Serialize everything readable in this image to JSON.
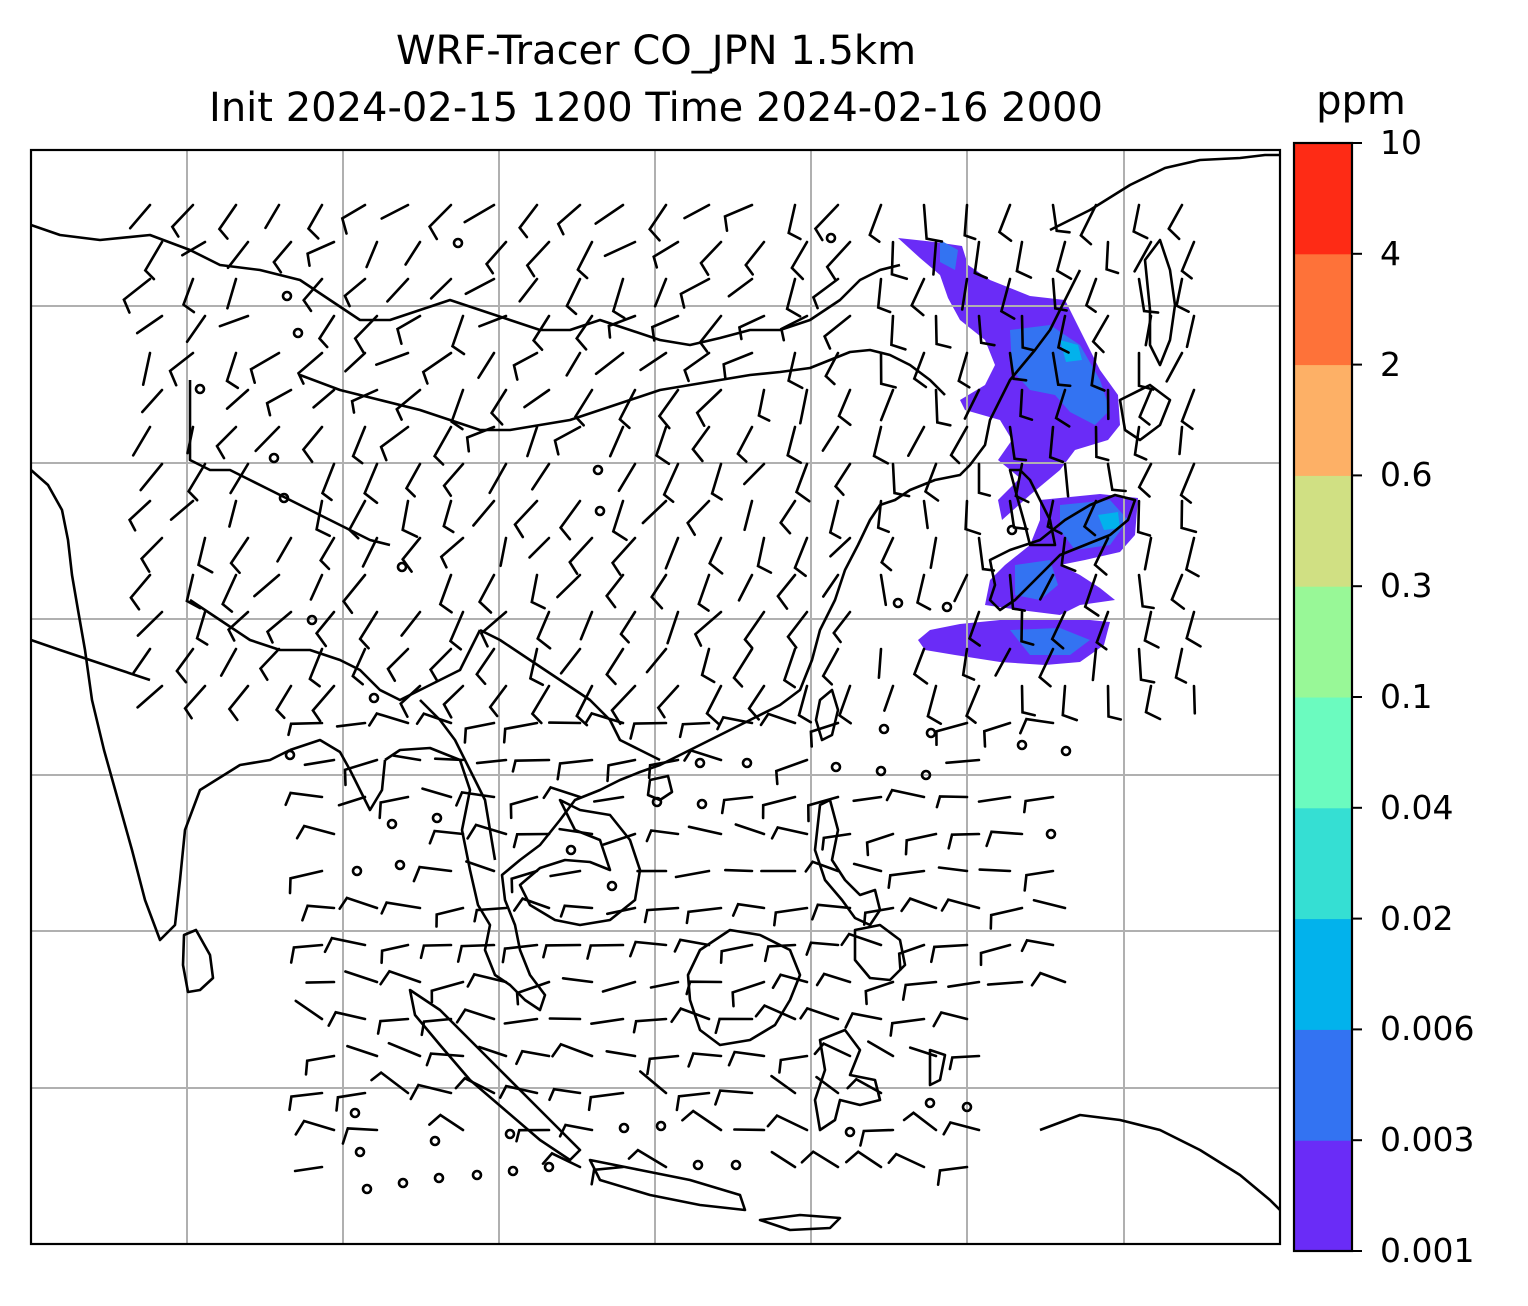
{
  "title": {
    "line1": "WRF-Tracer CO_JPN 1.5km",
    "line2": "Init 2024-02-15 1200 Time 2024-02-16 2000"
  },
  "colorbar": {
    "units": "ppm",
    "tick_labels": [
      "0.001",
      "0.003",
      "0.006",
      "0.02",
      "0.04",
      "0.1",
      "0.3",
      "0.6",
      "2",
      "4",
      "10"
    ],
    "colors": [
      "#6a2cf7",
      "#3373f2",
      "#02b2ec",
      "#35dfd3",
      "#6bfbbf",
      "#98f897",
      "#d0e083",
      "#fdb066",
      "#fe7239",
      "#fe2b15"
    ]
  },
  "map": {
    "gridlines": true,
    "tracer_color_min": "#6a2cf7",
    "tracer_color_mid": "#3373f2",
    "tracer_color_hi": "#02b2ec"
  }
}
